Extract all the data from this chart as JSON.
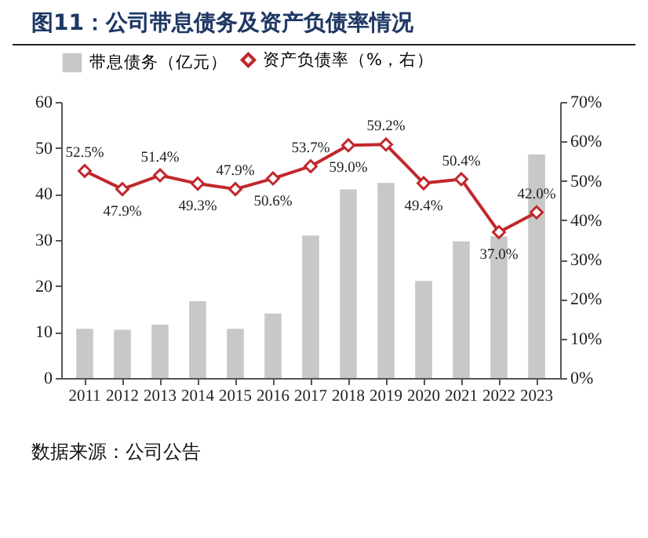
{
  "chart_data": {
    "type": "bar",
    "title": "图11：公司带息债务及资产负债率情况",
    "annotations": [
      "数据来源：公司公告"
    ],
    "categories": [
      "2011",
      "2012",
      "2013",
      "2014",
      "2015",
      "2016",
      "2017",
      "2018",
      "2019",
      "2020",
      "2021",
      "2022",
      "2023"
    ],
    "series": [
      {
        "name": "带息债务（亿元）",
        "color": "#c8c8c8",
        "values": [
          10.7,
          10.5,
          11.6,
          16.7,
          10.7,
          14.0,
          31.0,
          41.0,
          42.4,
          21.1,
          29.7,
          30.8,
          48.6
        ]
      },
      {
        "name": "资产负债率（%，右）",
        "type": "line",
        "axis": "y2",
        "color": "#c0282d",
        "marker": "diamond",
        "values": [
          52.5,
          47.9,
          51.4,
          49.3,
          47.9,
          50.6,
          53.7,
          59.0,
          59.2,
          49.4,
          50.4,
          37.0,
          42.0
        ],
        "value_labels": [
          "52.5%",
          "47.9%",
          "51.4%",
          "49.3%",
          "47.9%",
          "50.6%",
          "53.7%",
          "59.0%",
          "59.2%",
          "49.4%",
          "50.4%",
          "37.0%",
          "42.0%"
        ]
      }
    ],
    "ylim": [
      0,
      60
    ],
    "yticks": [
      0,
      10,
      20,
      30,
      40,
      50,
      60
    ],
    "y2lim": [
      0,
      70
    ],
    "y2ticks": [
      {
        "value": 0,
        "label": "0%"
      },
      {
        "value": 10,
        "label": "10%"
      },
      {
        "value": 20,
        "label": "20%"
      },
      {
        "value": 30,
        "label": "30%"
      },
      {
        "value": 40,
        "label": "40%"
      },
      {
        "value": 50,
        "label": "50%"
      },
      {
        "value": 60,
        "label": "60%"
      },
      {
        "value": 70,
        "label": "70%"
      }
    ],
    "legend": "top",
    "grid": false
  }
}
